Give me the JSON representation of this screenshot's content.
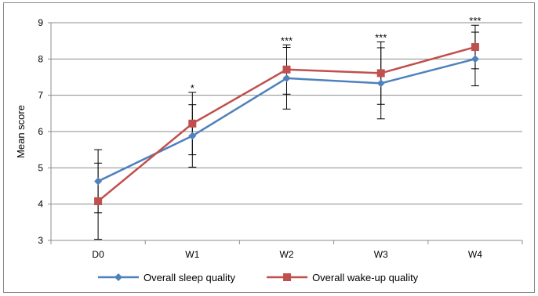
{
  "chart_data": {
    "type": "line",
    "categories": [
      "D0",
      "W1",
      "W2",
      "W3",
      "W4"
    ],
    "ylabel": "Mean score",
    "ylim": [
      3,
      9
    ],
    "yticks": [
      3,
      4,
      5,
      6,
      7,
      8,
      9
    ],
    "grid": true,
    "legend_position": "bottom",
    "series": [
      {
        "name": "Overall sleep quality",
        "color": "#4F81BD",
        "marker": "diamond",
        "values": [
          4.63,
          5.88,
          7.47,
          7.33,
          8.0
        ],
        "error": [
          0.87,
          0.86,
          0.85,
          0.98,
          0.74
        ]
      },
      {
        "name": "Overall wake-up quality",
        "color": "#C0504D",
        "marker": "square",
        "values": [
          4.08,
          6.22,
          7.71,
          7.61,
          8.33
        ],
        "error": [
          1.05,
          0.86,
          0.68,
          0.86,
          0.6
        ]
      }
    ],
    "annotations": [
      {
        "category": "W1",
        "text": "*"
      },
      {
        "category": "W2",
        "text": "***"
      },
      {
        "category": "W3",
        "text": "***"
      },
      {
        "category": "W4",
        "text": "***"
      }
    ]
  }
}
